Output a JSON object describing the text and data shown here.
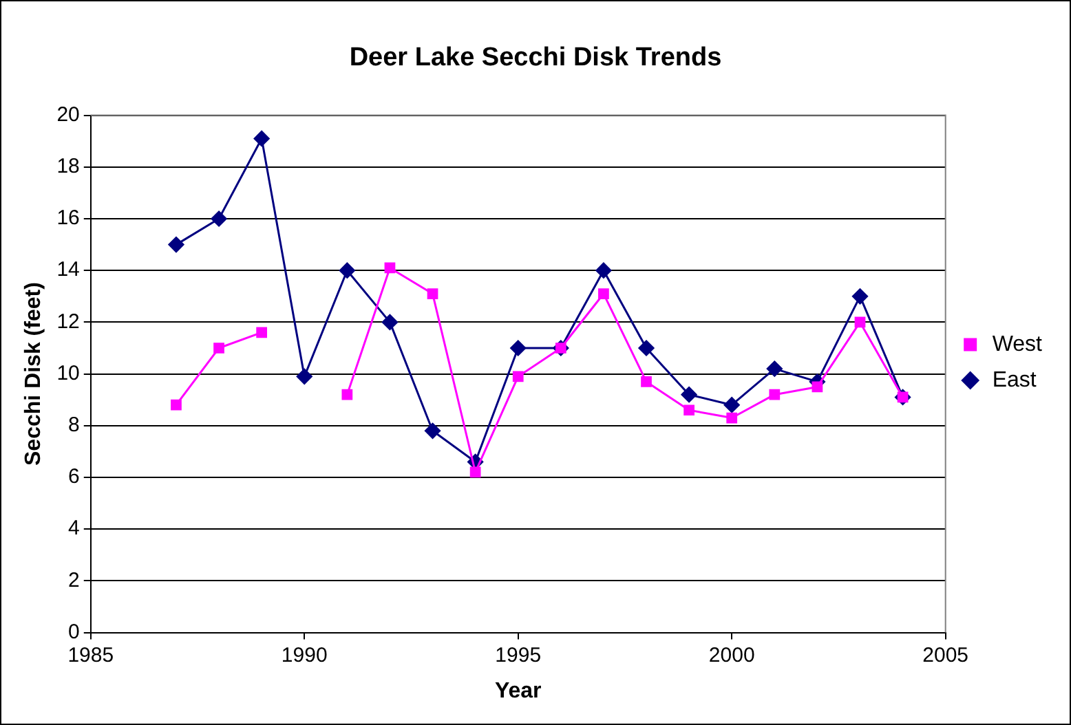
{
  "chart_data": {
    "type": "line",
    "title": "Deer Lake Secchi Disk Trends",
    "xlabel": "Year",
    "ylabel": "Secchi Disk (feet)",
    "x": [
      1987,
      1988,
      1989,
      1990,
      1991,
      1992,
      1993,
      1994,
      1995,
      1996,
      1997,
      1998,
      1999,
      2000,
      2001,
      2002,
      2003,
      2004
    ],
    "series": [
      {
        "name": "East",
        "color": "#000080",
        "marker": "diamond",
        "values": [
          15,
          16,
          19.1,
          9.9,
          14,
          12,
          7.8,
          6.6,
          11,
          11,
          14,
          11,
          9.2,
          8.8,
          10.2,
          9.7,
          13,
          9.1
        ]
      },
      {
        "name": "West",
        "color": "#ff00ff",
        "marker": "square",
        "values": [
          8.8,
          11,
          11.6,
          null,
          9.2,
          14.1,
          13.1,
          6.2,
          9.9,
          11,
          13.1,
          9.7,
          8.6,
          8.3,
          9.2,
          9.5,
          12,
          9.1
        ]
      }
    ],
    "xlim": [
      1985,
      2005
    ],
    "xticks": [
      1985,
      1990,
      1995,
      2000,
      2005
    ],
    "ylim": [
      0,
      20
    ],
    "yticks": [
      0,
      2,
      4,
      6,
      8,
      10,
      12,
      14,
      16,
      18,
      20
    ],
    "grid": "y",
    "legend": "right",
    "line_style": "solid"
  }
}
